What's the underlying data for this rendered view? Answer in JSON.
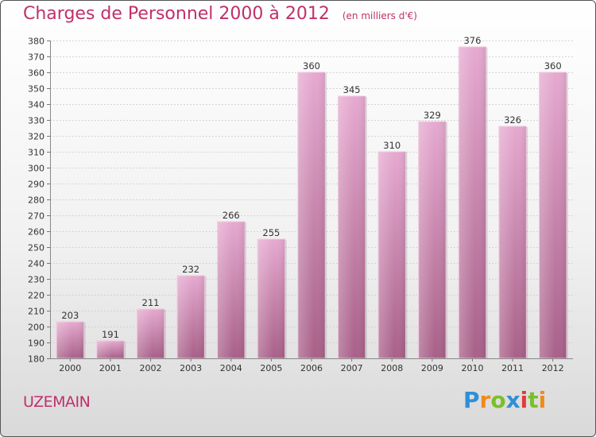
{
  "header": {
    "title": "Charges de Personnel 2000 à 2012",
    "subtitle": "(en milliers d'€)"
  },
  "footer": {
    "place": "UZEMAIN",
    "logo_letters": [
      "P",
      "r",
      "o",
      "x",
      "i",
      "t",
      "i"
    ],
    "logo_colors": [
      "#2f8fd6",
      "#f08a1c",
      "#7bbf2a",
      "#2f8fd6",
      "#e23b3b",
      "#7bbf2a",
      "#f08a1c"
    ]
  },
  "chart_data": {
    "type": "bar",
    "title": "Charges de Personnel 2000 à 2012",
    "subtitle": "(en milliers d'€)",
    "categories": [
      "2000",
      "2001",
      "2002",
      "2003",
      "2004",
      "2005",
      "2006",
      "2007",
      "2008",
      "2009",
      "2010",
      "2011",
      "2012"
    ],
    "values": [
      203,
      191,
      211,
      232,
      266,
      255,
      360,
      345,
      310,
      329,
      376,
      326,
      360
    ],
    "ylim": [
      180,
      380
    ],
    "ytick_step": 10,
    "grid": "horizontal",
    "bar_color_light": "#e6a9d0",
    "bar_color_dark": "#a86088"
  }
}
